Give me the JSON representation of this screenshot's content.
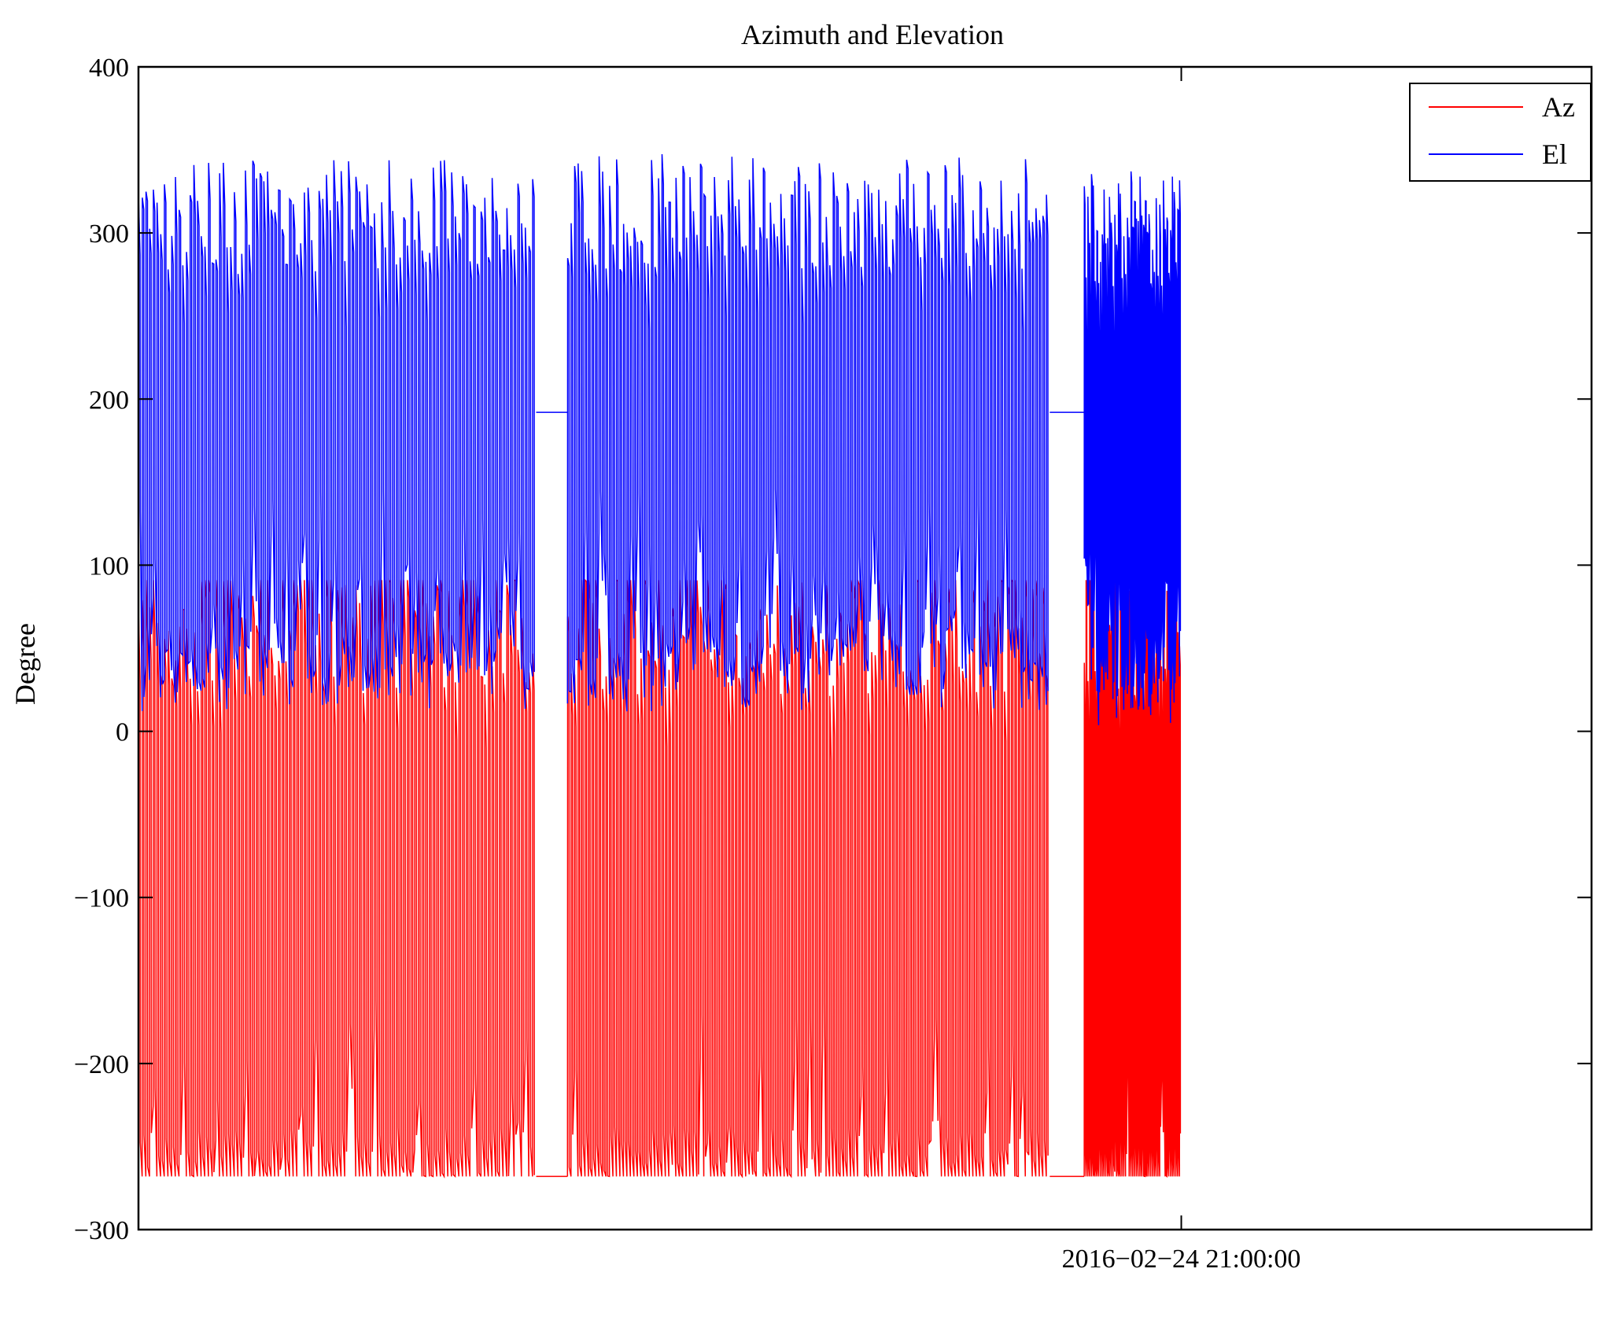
{
  "chart_data": {
    "type": "line",
    "title": "Azimuth and Elevation",
    "xlabel": "",
    "ylabel": "Degree",
    "ylim": [
      -300,
      400
    ],
    "yticks": [
      -300,
      -200,
      -100,
      0,
      100,
      200,
      300,
      400
    ],
    "ytick_labels": [
      "−300",
      "−200",
      "−100",
      "0",
      "100",
      "200",
      "300",
      "400"
    ],
    "xtick_labels": [
      "2016−02−24 21:00:00"
    ],
    "xlim": [
      "2016-02-24 15:27:00",
      "2016-02-24 23:11:00"
    ],
    "xticks": [
      "2016-02-24 21:00:00"
    ],
    "grid": false,
    "legend_position": "top-right",
    "series": [
      {
        "name": "Az",
        "color": "#ff0000",
        "segments": [
          {
            "x_start": "2016-02-24 15:27:00",
            "x_end": "2016-02-24 17:34:00",
            "cycles": 108,
            "low": -268,
            "high": 91
          },
          {
            "x_start": "2016-02-24 17:44:00",
            "x_end": "2016-02-24 20:18:00",
            "cycles": 138,
            "low": -268,
            "high": 91
          },
          {
            "x_start": "2016-02-24 20:29:00",
            "x_end": "2016-02-24 21:00:00",
            "cycles": 54,
            "low": -268,
            "high": 91
          }
        ]
      },
      {
        "name": "El",
        "color": "#0000ff",
        "segments": [
          {
            "x_start": "2016-02-24 15:27:00",
            "x_end": "2016-02-24 17:34:00",
            "cycles": 108,
            "low": 12,
            "high": 345
          },
          {
            "x_start": "2016-02-24 17:44:00",
            "x_end": "2016-02-24 20:18:00",
            "cycles": 138,
            "low": 12,
            "high": 348
          },
          {
            "x_start": "2016-02-24 20:29:00",
            "x_end": "2016-02-24 21:00:00",
            "cycles": 54,
            "low": 3,
            "high": 338
          }
        ]
      }
    ]
  }
}
